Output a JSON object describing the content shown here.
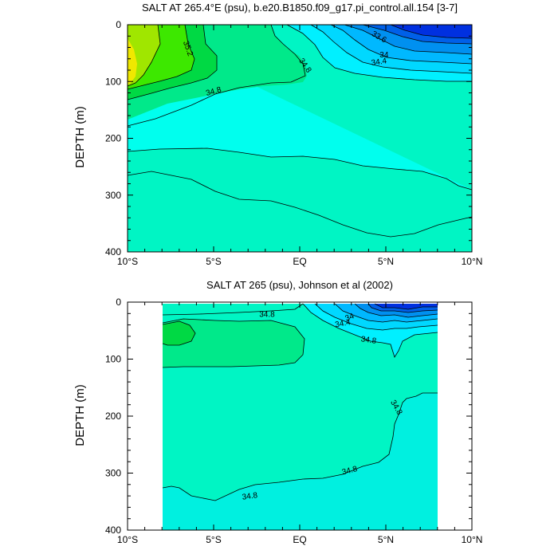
{
  "chart_data": [
    {
      "type": "contour",
      "title": "SALT AT 265.4°E (psu), b.e20.B1850.f09_g17.pi_control.all.154 [3-7]",
      "xlabel": "",
      "ylabel": "DEPTH (m)",
      "x_ticks": [
        "10°S",
        "5°S",
        "EQ",
        "5°N",
        "10°N"
      ],
      "y_ticks": [
        "0",
        "100",
        "200",
        "300",
        "400"
      ],
      "xlim": [
        -10,
        10
      ],
      "ylim": [
        400,
        0
      ],
      "data_extent": [
        -10,
        10
      ],
      "contour_labels": [
        {
          "text": "35.2",
          "x": -6.5,
          "y": 42,
          "rotate": 70
        },
        {
          "text": "34.8",
          "x": 0.3,
          "y": 72,
          "rotate": 55
        },
        {
          "text": "34.8",
          "x": -5.0,
          "y": 118,
          "rotate": -15
        },
        {
          "text": "33.6",
          "x": 4.6,
          "y": 22,
          "rotate": 30
        },
        {
          "text": "34",
          "x": 4.9,
          "y": 54,
          "rotate": 0
        },
        {
          "text": "34.4",
          "x": 4.6,
          "y": 66,
          "rotate": -8
        }
      ]
    },
    {
      "type": "contour",
      "title": "SALT AT 265 (psu), Johnson et al (2002)",
      "xlabel": "",
      "ylabel": "DEPTH (m)",
      "x_ticks": [
        "10°S",
        "5°S",
        "EQ",
        "5°N",
        "10°N"
      ],
      "y_ticks": [
        "0",
        "100",
        "200",
        "300",
        "400"
      ],
      "xlim": [
        -10,
        10
      ],
      "ylim": [
        400,
        0
      ],
      "data_extent": [
        -8,
        8
      ],
      "contour_labels": [
        {
          "text": "34.8",
          "x": -1.9,
          "y": 22,
          "rotate": 0
        },
        {
          "text": "34",
          "x": 2.9,
          "y": 27,
          "rotate": -22
        },
        {
          "text": "34.4",
          "x": 2.5,
          "y": 38,
          "rotate": -10
        },
        {
          "text": "34.8",
          "x": 4.0,
          "y": 67,
          "rotate": 8
        },
        {
          "text": "34.8",
          "x": 5.6,
          "y": 185,
          "rotate": 60
        },
        {
          "text": "34.8",
          "x": 2.9,
          "y": 296,
          "rotate": -14
        },
        {
          "text": "34.8",
          "x": -2.9,
          "y": 341,
          "rotate": -8
        }
      ]
    }
  ]
}
